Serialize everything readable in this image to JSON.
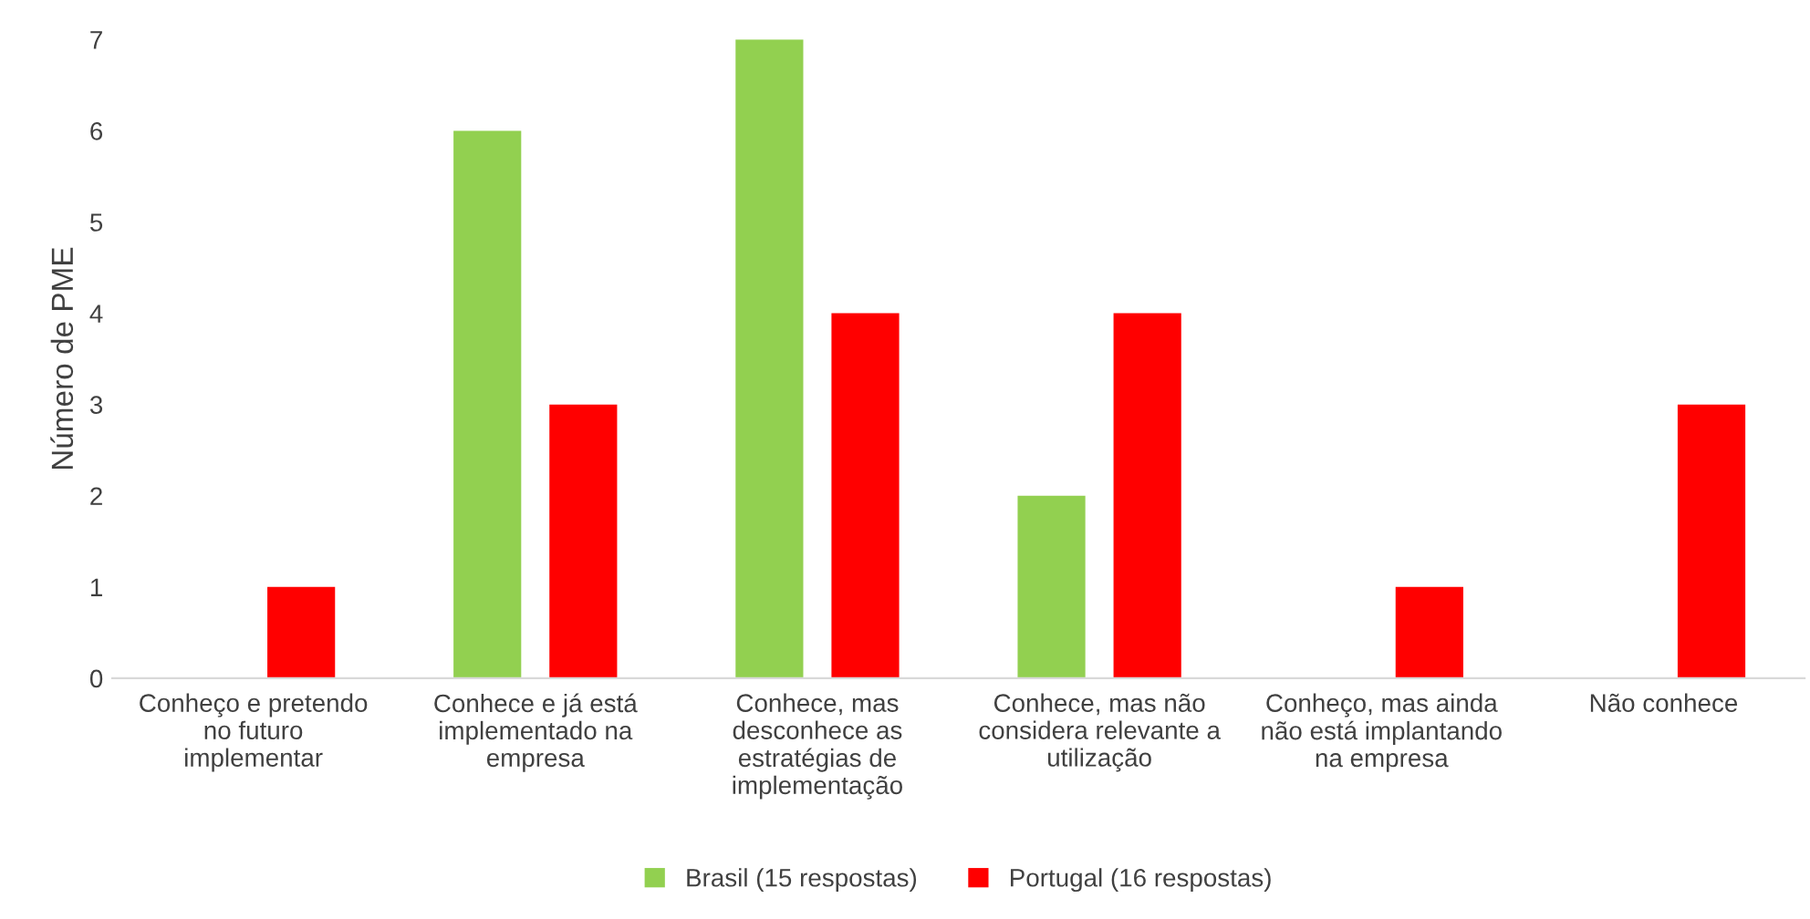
{
  "chart_data": {
    "type": "bar",
    "ylabel": "Número de PME",
    "categories": [
      "Conheço e pretendo\nno futuro\nimplementar",
      "Conhece e já está\nimplementado na\nempresa",
      "Conhece, mas\ndesconhece as\nestratégias de\nimplementação",
      "Conhece, mas não\nconsidera relevante a\nutilização",
      "Conheço, mas ainda\nnão está implantando\nna empresa",
      "Não conhece"
    ],
    "series": [
      {
        "name": "Brasil (15 respostas)",
        "color": "#92d050",
        "values": [
          0,
          6,
          7,
          2,
          0,
          0
        ]
      },
      {
        "name": "Portugal (16 respostas)",
        "color": "#ff0000",
        "values": [
          1,
          3,
          4,
          4,
          1,
          3
        ]
      }
    ],
    "ylim": [
      0,
      7
    ],
    "yticks": [
      0,
      1,
      2,
      3,
      4,
      5,
      6,
      7
    ],
    "grid": false,
    "legend": "bottom"
  }
}
